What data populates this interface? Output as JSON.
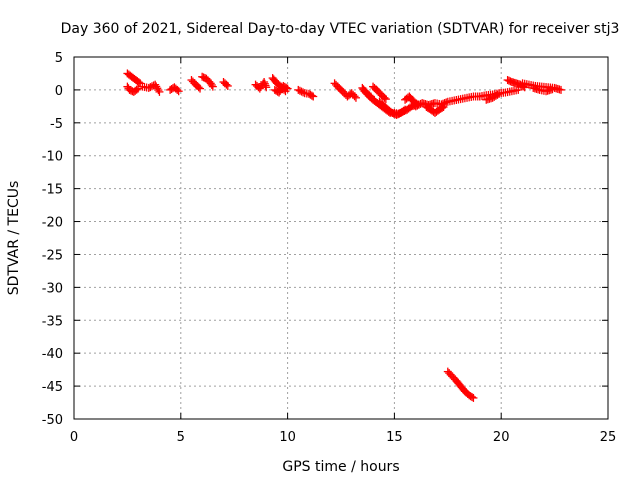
{
  "chart_data": {
    "type": "scatter",
    "title": "Day 360 of 2021, Sidereal Day-to-day VTEC variation (SDTVAR) for receiver stj3",
    "xlabel": "GPS time / hours",
    "ylabel": "SDTVAR / TECUs",
    "xlim": [
      0,
      25
    ],
    "ylim": [
      -50,
      5
    ],
    "xticks": [
      0,
      5,
      10,
      15,
      20,
      25
    ],
    "yticks": [
      5,
      0,
      -5,
      -10,
      -15,
      -20,
      -25,
      -30,
      -35,
      -40,
      -45,
      -50
    ],
    "grid": true,
    "marker": "plus",
    "color": "#ff0000",
    "segments": [
      {
        "x": [
          2.5,
          2.7,
          2.9,
          3.1
        ],
        "y": [
          2.5,
          2.0,
          1.5,
          1.0
        ]
      },
      {
        "x": [
          2.5,
          2.6,
          2.8,
          3.0
        ],
        "y": [
          0.5,
          0.0,
          -0.3,
          0.2
        ]
      },
      {
        "x": [
          3.2,
          3.5,
          3.8,
          4.0
        ],
        "y": [
          0.5,
          0.3,
          0.8,
          -0.3
        ]
      },
      {
        "x": [
          4.5,
          4.7,
          4.9
        ],
        "y": [
          0.0,
          0.4,
          -0.2
        ]
      },
      {
        "x": [
          5.5,
          5.7,
          5.9
        ],
        "y": [
          1.5,
          0.8,
          0.2
        ]
      },
      {
        "x": [
          6.0,
          6.2,
          6.4,
          6.5
        ],
        "y": [
          2.0,
          1.7,
          1.0,
          0.5
        ]
      },
      {
        "x": [
          7.0,
          7.2
        ],
        "y": [
          1.2,
          0.6
        ]
      },
      {
        "x": [
          8.5,
          8.7,
          8.9,
          9.0
        ],
        "y": [
          0.8,
          0.2,
          1.2,
          0.4
        ]
      },
      {
        "x": [
          9.3,
          9.5,
          9.7,
          9.9
        ],
        "y": [
          1.8,
          1.0,
          0.5,
          -0.2
        ]
      },
      {
        "x": [
          9.4,
          9.6,
          9.8,
          10.0
        ],
        "y": [
          0.0,
          -0.4,
          0.6,
          0.2
        ]
      },
      {
        "x": [
          10.5,
          10.8,
          11.0,
          11.2
        ],
        "y": [
          0.0,
          -0.5,
          -0.6,
          -1.0
        ]
      },
      {
        "x": [
          12.2,
          12.4,
          12.6,
          12.8,
          13.0,
          13.2
        ],
        "y": [
          1.0,
          0.3,
          -0.3,
          -1.0,
          -0.5,
          -1.2
        ]
      },
      {
        "x": [
          13.5,
          13.7,
          13.9
        ],
        "y": [
          0.3,
          -0.5,
          -1.0
        ]
      },
      {
        "x": [
          13.6,
          13.8,
          14.0,
          14.2,
          14.4,
          14.6,
          14.8,
          15.0
        ],
        "y": [
          -0.2,
          -0.9,
          -1.5,
          -2.0,
          -2.5,
          -3.0,
          -3.5,
          -3.5
        ]
      },
      {
        "x": [
          14.0,
          14.2,
          14.4,
          14.6
        ],
        "y": [
          0.5,
          -0.1,
          -0.8,
          -1.4
        ]
      },
      {
        "x": [
          14.3,
          14.5,
          14.7,
          14.9,
          15.1,
          15.3,
          15.5
        ],
        "y": [
          -1.8,
          -2.4,
          -3.0,
          -3.5,
          -3.8,
          -3.5,
          -3.0
        ]
      },
      {
        "x": [
          15.0,
          15.2,
          15.4,
          15.6,
          15.8,
          16.0
        ],
        "y": [
          -3.5,
          -3.6,
          -3.3,
          -3.0,
          -2.5,
          -2.3
        ]
      },
      {
        "x": [
          15.5,
          15.7,
          15.9,
          16.1
        ],
        "y": [
          -1.5,
          -1.0,
          -1.8,
          -2.2
        ]
      },
      {
        "x": [
          16.0,
          16.3,
          16.6,
          16.9,
          17.2,
          17.5,
          17.8,
          18.1,
          18.4,
          18.7,
          19.0
        ],
        "y": [
          -2.5,
          -2.0,
          -2.3,
          -2.0,
          -2.2,
          -1.8,
          -1.6,
          -1.4,
          -1.2,
          -1.0,
          -1.0
        ]
      },
      {
        "x": [
          16.5,
          16.7,
          16.9,
          17.1,
          17.3
        ],
        "y": [
          -2.6,
          -3.0,
          -3.5,
          -3.0,
          -2.6
        ]
      },
      {
        "x": [
          17.5,
          17.7,
          17.9,
          18.1,
          18.3,
          18.5,
          18.7
        ],
        "y": [
          -42.8,
          -43.5,
          -44.2,
          -45.0,
          -45.8,
          -46.4,
          -46.8
        ]
      },
      {
        "x": [
          19.0,
          19.3,
          19.6,
          19.9,
          20.2,
          20.5,
          20.8
        ],
        "y": [
          -1.0,
          -0.8,
          -0.7,
          -0.5,
          -0.4,
          -0.2,
          0.0
        ]
      },
      {
        "x": [
          19.3,
          19.6,
          19.9
        ],
        "y": [
          -1.5,
          -1.2,
          -0.6
        ]
      },
      {
        "x": [
          20.3,
          20.5,
          20.7,
          20.9,
          21.1
        ],
        "y": [
          1.5,
          1.2,
          1.0,
          0.8,
          0.4
        ]
      },
      {
        "x": [
          21.0,
          21.3,
          21.6,
          21.9,
          22.2,
          22.5,
          22.8
        ],
        "y": [
          1.0,
          0.8,
          0.6,
          0.5,
          0.4,
          0.3,
          0.0
        ]
      },
      {
        "x": [
          21.5,
          21.8,
          22.1,
          22.4
        ],
        "y": [
          0.3,
          0.0,
          -0.2,
          0.1
        ]
      }
    ]
  }
}
